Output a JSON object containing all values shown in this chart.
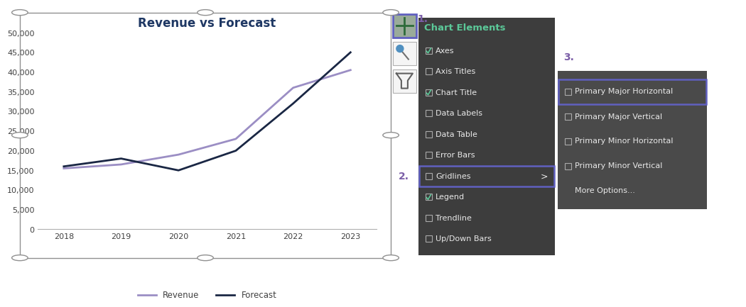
{
  "title": "Revenue vs Forecast",
  "years": [
    2018,
    2019,
    2020,
    2021,
    2022,
    2023
  ],
  "revenue": [
    15500,
    16500,
    19000,
    23000,
    36000,
    40500
  ],
  "forecast": [
    16000,
    18000,
    15000,
    20000,
    32000,
    45000
  ],
  "revenue_color": "#9b8ec4",
  "forecast_color": "#1a2744",
  "title_color": "#1f3864",
  "axis_text_color": "#404040",
  "ylim": [
    0,
    50000
  ],
  "yticks": [
    0,
    5000,
    10000,
    15000,
    20000,
    25000,
    30000,
    35000,
    40000,
    45000,
    50000
  ],
  "chart_bg": "#ffffff",
  "outer_bg": "#ffffff",
  "panel_bg": "#3d3d3d",
  "submenu_bg": "#4a4a4a",
  "panel_text_color": "#e8e8e8",
  "panel_header_color": "#5bc898",
  "highlight_color": "#6060c0",
  "number_color": "#7b5ea7",
  "handle_color": "#a0a0a0",
  "btn_border_color": "#909090",
  "menu_items": [
    [
      "Axes",
      true
    ],
    [
      "Axis Titles",
      false
    ],
    [
      "Chart Title",
      true
    ],
    [
      "Data Labels",
      false
    ],
    [
      "Data Table",
      false
    ],
    [
      "Error Bars",
      false
    ],
    [
      "Gridlines",
      false
    ],
    [
      "Legend",
      true
    ],
    [
      "Trendline",
      false
    ],
    [
      "Up/Down Bars",
      false
    ]
  ],
  "submenu_items": [
    [
      "Primary Major Horizontal",
      false
    ],
    [
      "Primary Major Vertical",
      false
    ],
    [
      "Primary Minor Horizontal",
      false
    ],
    [
      "Primary Minor Vertical",
      false
    ],
    [
      "More Options...",
      null
    ]
  ]
}
